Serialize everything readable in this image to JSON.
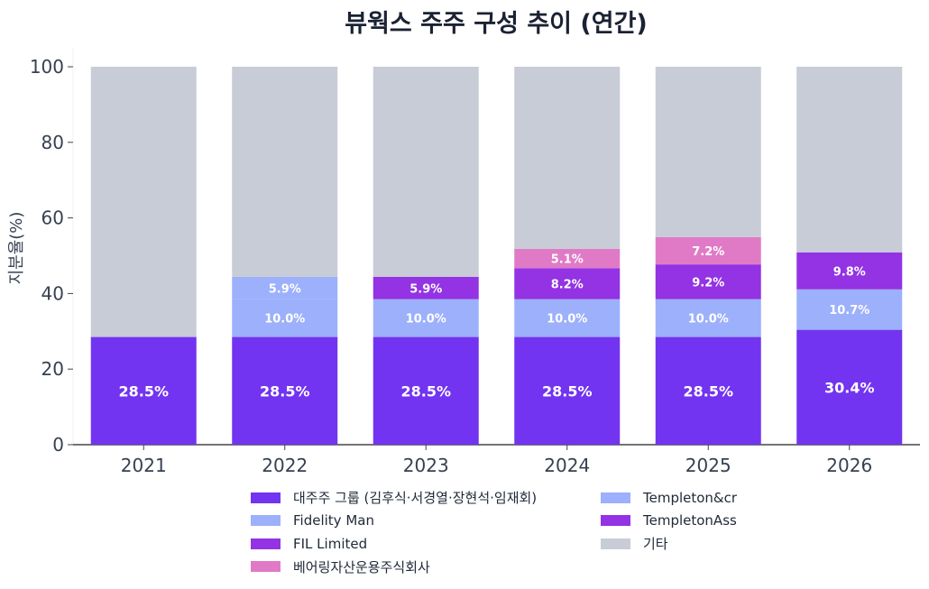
{
  "chart_data": {
    "type": "bar",
    "stacked": true,
    "title": "뷰웍스 주주 구성 추이 (연간)",
    "ylabel": "지분율(%)",
    "xlabel": "",
    "ylim": [
      0,
      105
    ],
    "yticks": [
      0,
      20,
      40,
      60,
      80,
      100
    ],
    "grid": false,
    "legend_position": "bottom",
    "categories": [
      "2021",
      "2022",
      "2023",
      "2024",
      "2025",
      "2026"
    ],
    "series": [
      {
        "name": "대주주 그룹 (김후식·서경열·장현석·임재회)",
        "color": "#7234f0",
        "values": [
          28.5,
          28.5,
          28.5,
          28.5,
          28.5,
          30.4
        ],
        "labels": [
          "28.5%",
          "28.5%",
          "28.5%",
          "28.5%",
          "28.5%",
          "30.4%"
        ]
      },
      {
        "name": "Templeton&cr",
        "color": "#9cb0fb",
        "values": [
          0,
          0,
          10.0,
          10.0,
          10.0,
          0
        ],
        "labels": [
          "",
          "",
          "10.0%",
          "10.0%",
          "10.0%",
          ""
        ]
      },
      {
        "name": "Fidelity Man",
        "color": "#9cb0fb",
        "values": [
          0,
          10.0,
          0,
          0,
          0,
          10.7
        ],
        "labels": [
          "",
          "10.0%",
          "",
          "",
          "",
          "10.7%"
        ]
      },
      {
        "name": "TempletonAss",
        "color": "#9333e3",
        "values": [
          0,
          0,
          0,
          0,
          0,
          9.8
        ],
        "labels": [
          "",
          "",
          "",
          "",
          "",
          "9.8%"
        ]
      },
      {
        "name": "FIL Limited",
        "color": "#9333e3",
        "values": [
          0,
          5.9,
          5.9,
          8.2,
          9.2,
          0
        ],
        "labels": [
          "",
          "5.9%",
          "5.9%",
          "8.2%",
          "9.2%",
          ""
        ],
        "colors": [
          "#9333e3",
          "#9cb0fb",
          "#9333e3",
          "#9333e3",
          "#9333e3",
          "#9333e3"
        ]
      },
      {
        "name": "베어링자산운용주식회사",
        "color": "#e07ac6",
        "values": [
          0,
          0,
          0,
          5.1,
          7.2,
          0
        ],
        "labels": [
          "",
          "",
          "",
          "5.1%",
          "7.2%",
          ""
        ]
      },
      {
        "name": "기타",
        "color": "#c8ccd6",
        "values": [
          71.5,
          55.6,
          55.6,
          48.2,
          45.1,
          49.1
        ],
        "labels": [
          "",
          "",
          "",
          "",
          "",
          ""
        ]
      }
    ]
  },
  "legend": {
    "left": [
      {
        "name": "대주주 그룹 (김후식·서경열·장현석·임재회)",
        "color": "#7234f0"
      },
      {
        "name": "Fidelity Man",
        "color": "#9cb0fb"
      },
      {
        "name": "FIL Limited",
        "color": "#9333e3"
      },
      {
        "name": "베어링자산운용주식회사",
        "color": "#e07ac6"
      }
    ],
    "right": [
      {
        "name": "Templeton&cr",
        "color": "#9cb0fb"
      },
      {
        "name": "TempletonAss",
        "color": "#9333e3"
      },
      {
        "name": "기타",
        "color": "#c8ccd6"
      }
    ]
  }
}
